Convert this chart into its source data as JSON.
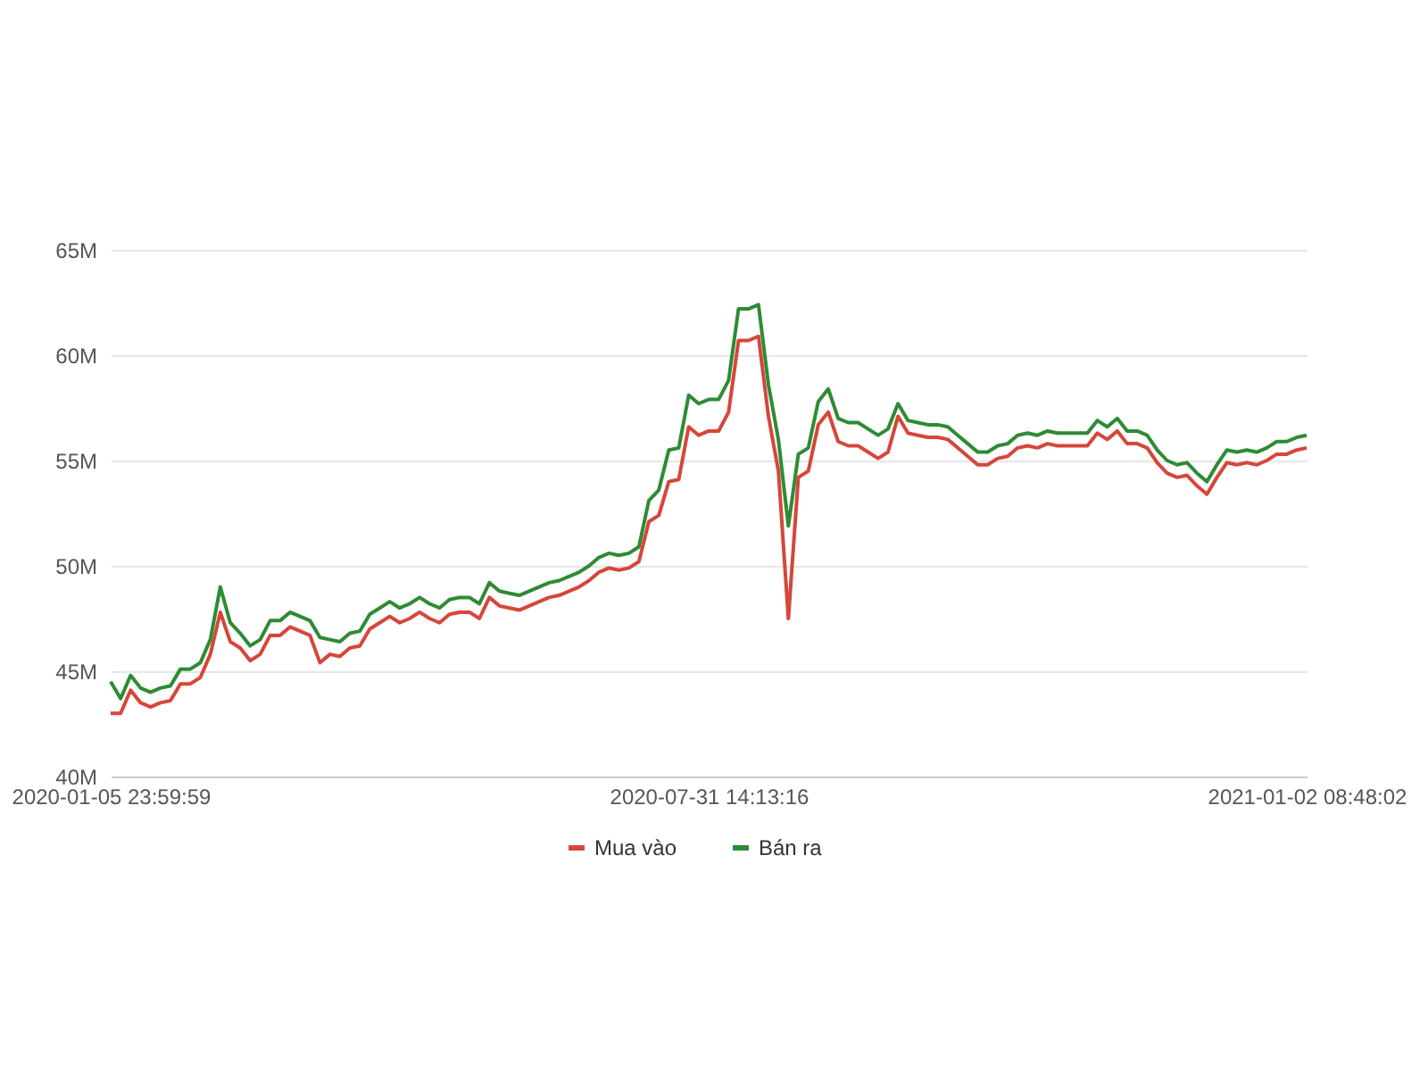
{
  "chart_data": {
    "type": "line",
    "categories": [
      "2020-01-05 23:59:59",
      null,
      null,
      null,
      null,
      null,
      null,
      null,
      null,
      null,
      null,
      null,
      null,
      null,
      null,
      null,
      null,
      null,
      null,
      null,
      null,
      null,
      null,
      null,
      null,
      null,
      null,
      null,
      null,
      null,
      null,
      null,
      null,
      null,
      null,
      null,
      null,
      null,
      null,
      null,
      null,
      null,
      null,
      null,
      null,
      null,
      null,
      null,
      null,
      null,
      null,
      null,
      null,
      null,
      null,
      null,
      null,
      null,
      null,
      null,
      "2020-07-31 14:13:16",
      null,
      null,
      null,
      null,
      null,
      null,
      null,
      null,
      null,
      null,
      null,
      null,
      null,
      null,
      null,
      null,
      null,
      null,
      null,
      null,
      null,
      null,
      null,
      null,
      null,
      null,
      null,
      null,
      null,
      null,
      null,
      null,
      null,
      null,
      null,
      null,
      null,
      null,
      null,
      null,
      null,
      null,
      null,
      null,
      null,
      null,
      null,
      null,
      null,
      null,
      null,
      null,
      null,
      null,
      null,
      null,
      null,
      null,
      null,
      "2021-01-02 08:48:02"
    ],
    "series": [
      {
        "name": "Mua vào",
        "color": "#d6463a",
        "values": [
          43.0,
          43.0,
          44.1,
          43.5,
          43.3,
          43.5,
          43.6,
          44.4,
          44.4,
          44.7,
          45.8,
          47.8,
          46.4,
          46.1,
          45.5,
          45.8,
          46.7,
          46.7,
          47.1,
          46.9,
          46.7,
          45.4,
          45.8,
          45.7,
          46.1,
          46.2,
          47.0,
          47.3,
          47.6,
          47.3,
          47.5,
          47.8,
          47.5,
          47.3,
          47.7,
          47.8,
          47.8,
          47.5,
          48.5,
          48.1,
          48.0,
          47.9,
          48.1,
          48.3,
          48.5,
          48.6,
          48.8,
          49.0,
          49.3,
          49.7,
          49.9,
          49.8,
          49.9,
          50.2,
          52.1,
          52.4,
          54.0,
          54.1,
          56.6,
          56.2,
          56.4,
          56.4,
          57.3,
          60.7,
          60.7,
          60.9,
          57.1,
          54.5,
          47.5,
          54.2,
          54.5,
          56.7,
          57.3,
          55.9,
          55.7,
          55.7,
          55.4,
          55.1,
          55.4,
          57.1,
          56.3,
          56.2,
          56.1,
          56.1,
          56.0,
          55.6,
          55.2,
          54.8,
          54.8,
          55.1,
          55.2,
          55.6,
          55.7,
          55.6,
          55.8,
          55.7,
          55.7,
          55.7,
          55.7,
          56.3,
          56.0,
          56.4,
          55.8,
          55.8,
          55.6,
          54.9,
          54.4,
          54.2,
          54.3,
          53.8,
          53.4,
          54.2,
          54.9,
          54.8,
          54.9,
          54.8,
          55.0,
          55.3,
          55.3,
          55.5,
          55.6
        ]
      },
      {
        "name": "Bán ra",
        "color": "#2e8b34",
        "values": [
          44.5,
          43.7,
          44.8,
          44.2,
          44.0,
          44.2,
          44.3,
          45.1,
          45.1,
          45.4,
          46.5,
          49.0,
          47.3,
          46.8,
          46.2,
          46.5,
          47.4,
          47.4,
          47.8,
          47.6,
          47.4,
          46.6,
          46.5,
          46.4,
          46.8,
          46.9,
          47.7,
          48.0,
          48.3,
          48.0,
          48.2,
          48.5,
          48.2,
          48.0,
          48.4,
          48.5,
          48.5,
          48.2,
          49.2,
          48.8,
          48.7,
          48.6,
          48.8,
          49.0,
          49.2,
          49.3,
          49.5,
          49.7,
          50.0,
          50.4,
          50.6,
          50.5,
          50.6,
          50.9,
          53.1,
          53.6,
          55.5,
          55.6,
          58.1,
          57.7,
          57.9,
          57.9,
          58.8,
          62.2,
          62.2,
          62.4,
          58.6,
          56.0,
          51.9,
          55.3,
          55.6,
          57.8,
          58.4,
          57.0,
          56.8,
          56.8,
          56.5,
          56.2,
          56.5,
          57.7,
          56.9,
          56.8,
          56.7,
          56.7,
          56.6,
          56.2,
          55.8,
          55.4,
          55.4,
          55.7,
          55.8,
          56.2,
          56.3,
          56.2,
          56.4,
          56.3,
          56.3,
          56.3,
          56.3,
          56.9,
          56.6,
          57.0,
          56.4,
          56.4,
          56.2,
          55.5,
          55.0,
          54.8,
          54.9,
          54.4,
          54.0,
          54.8,
          55.5,
          55.4,
          55.5,
          55.4,
          55.6,
          55.9,
          55.9,
          56.1,
          56.2
        ]
      }
    ],
    "ylim": [
      40,
      65
    ],
    "yticks": [
      {
        "value": 40,
        "label": "40M"
      },
      {
        "value": 45,
        "label": "45M"
      },
      {
        "value": 50,
        "label": "50M"
      },
      {
        "value": 55,
        "label": "55M"
      },
      {
        "value": 60,
        "label": "60M"
      },
      {
        "value": 65,
        "label": "65M"
      }
    ],
    "grid": "y",
    "legend": "bottom",
    "marker": "none"
  }
}
